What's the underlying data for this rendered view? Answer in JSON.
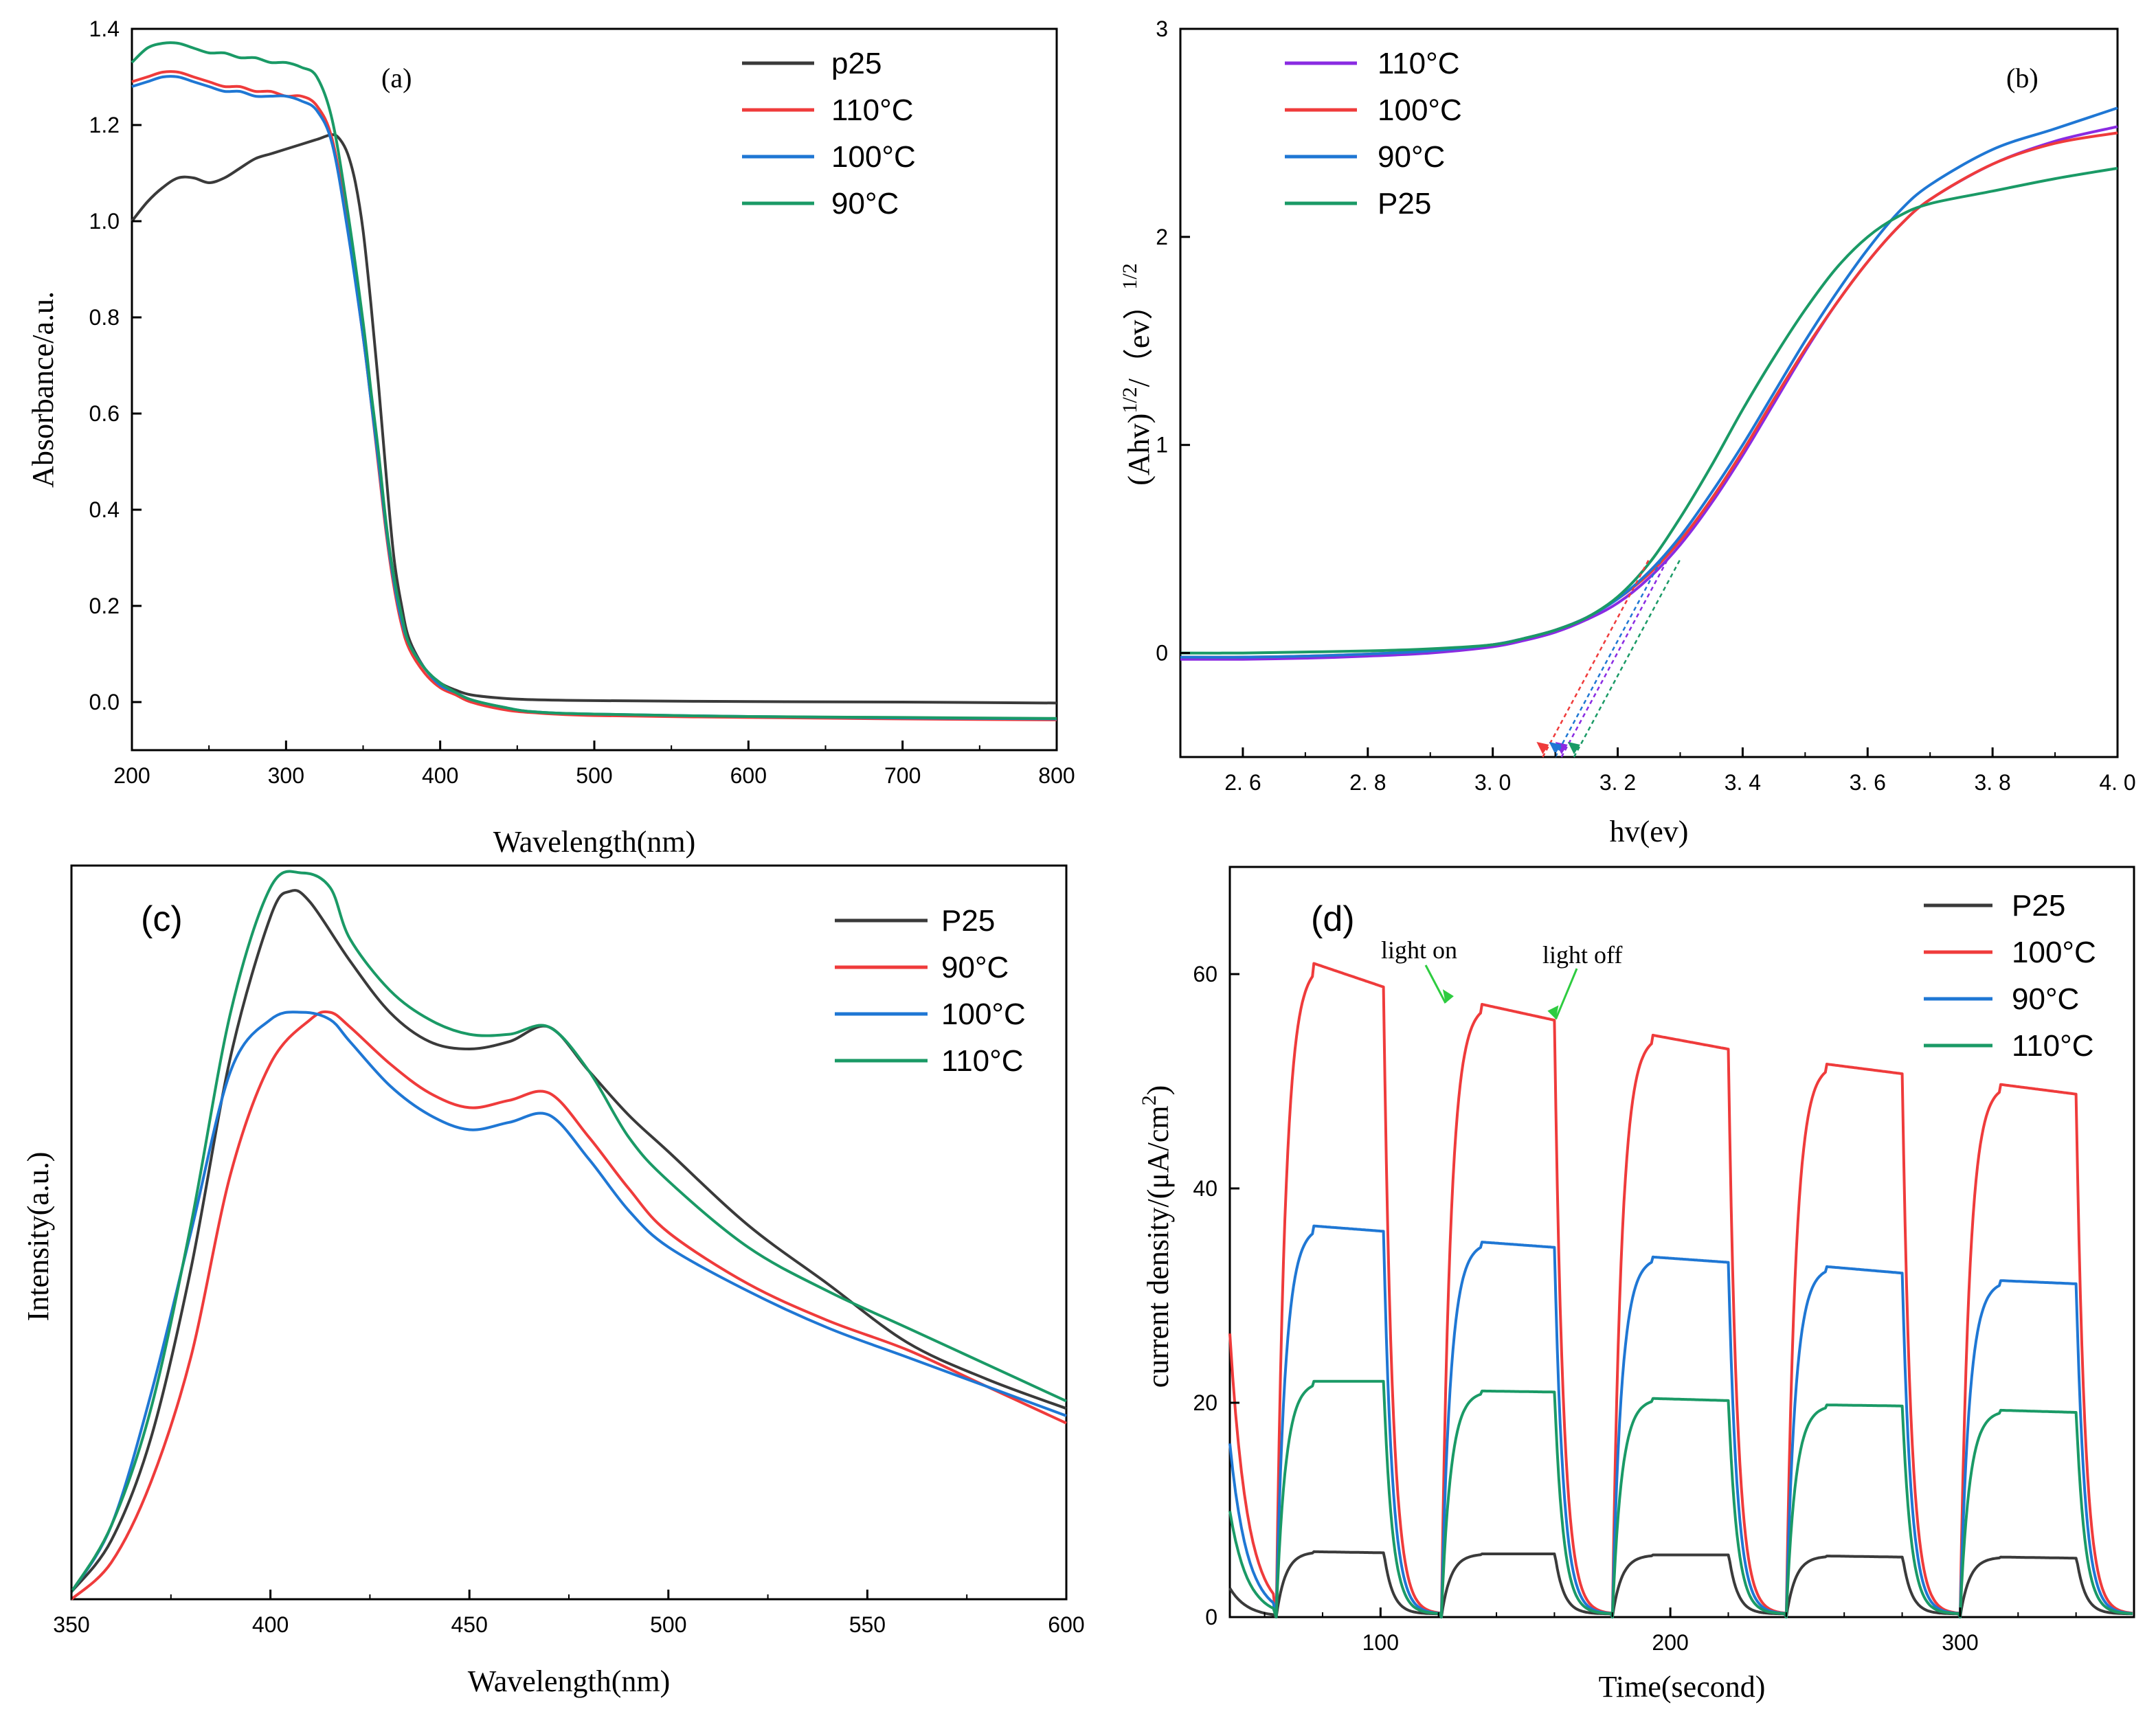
{
  "chart_data": [
    {
      "id": "a",
      "type": "line",
      "panel_label": "(a)",
      "xlabel": "Wavelength(nm)",
      "ylabel": "Absorbance/a.u.",
      "xlim": [
        200,
        800
      ],
      "ylim": [
        -0.1,
        1.4
      ],
      "xticks": [
        200,
        300,
        400,
        500,
        600,
        700,
        800
      ],
      "yticks": [
        0.0,
        0.2,
        0.4,
        0.6,
        0.8,
        1.0,
        1.2,
        1.4
      ],
      "ytick_labels": [
        "0.0",
        "0.2",
        "0.4",
        "0.6",
        "0.8",
        "1.0",
        "1.2",
        "1.4"
      ],
      "legend": "top-right",
      "series": [
        {
          "name": "p25",
          "color": "#3a3a3a",
          "x": [
            200,
            210,
            220,
            230,
            240,
            250,
            260,
            270,
            280,
            290,
            300,
            310,
            320,
            330,
            335,
            340,
            345,
            350,
            355,
            360,
            365,
            370,
            375,
            380,
            390,
            400,
            410,
            420,
            440,
            460,
            500,
            600,
            700,
            800
          ],
          "y": [
            1.0,
            1.04,
            1.07,
            1.09,
            1.09,
            1.08,
            1.09,
            1.11,
            1.13,
            1.14,
            1.15,
            1.16,
            1.17,
            1.18,
            1.17,
            1.14,
            1.08,
            0.98,
            0.83,
            0.66,
            0.47,
            0.3,
            0.2,
            0.13,
            0.07,
            0.04,
            0.025,
            0.015,
            0.008,
            0.005,
            0.003,
            0.001,
            0.0,
            -0.002
          ]
        },
        {
          "name": "110°C",
          "color": "#ef3b3b",
          "x": [
            200,
            210,
            220,
            230,
            240,
            250,
            260,
            270,
            280,
            290,
            300,
            310,
            320,
            330,
            340,
            350,
            355,
            360,
            365,
            370,
            375,
            380,
            390,
            400,
            410,
            420,
            440,
            460,
            500,
            600,
            700,
            800
          ],
          "y": [
            1.29,
            1.3,
            1.31,
            1.31,
            1.3,
            1.29,
            1.28,
            1.28,
            1.27,
            1.27,
            1.26,
            1.26,
            1.24,
            1.17,
            0.99,
            0.76,
            0.63,
            0.49,
            0.35,
            0.24,
            0.16,
            0.11,
            0.06,
            0.03,
            0.015,
            0.0,
            -0.015,
            -0.022,
            -0.028,
            -0.032,
            -0.035,
            -0.037
          ]
        },
        {
          "name": "100°C",
          "color": "#1f77d4",
          "x": [
            200,
            210,
            220,
            230,
            240,
            250,
            260,
            270,
            280,
            290,
            300,
            310,
            320,
            330,
            340,
            350,
            355,
            360,
            365,
            370,
            375,
            380,
            390,
            400,
            410,
            420,
            440,
            460,
            500,
            600,
            700,
            800
          ],
          "y": [
            1.28,
            1.29,
            1.3,
            1.3,
            1.29,
            1.28,
            1.27,
            1.27,
            1.26,
            1.26,
            1.26,
            1.25,
            1.23,
            1.16,
            0.98,
            0.76,
            0.63,
            0.5,
            0.36,
            0.25,
            0.17,
            0.12,
            0.07,
            0.035,
            0.02,
            0.005,
            -0.01,
            -0.02,
            -0.025,
            -0.03,
            -0.033,
            -0.035
          ]
        },
        {
          "name": "90°C",
          "color": "#1a9a66",
          "x": [
            200,
            210,
            220,
            230,
            240,
            250,
            260,
            270,
            280,
            290,
            300,
            310,
            320,
            330,
            340,
            350,
            355,
            360,
            365,
            370,
            375,
            380,
            390,
            400,
            410,
            420,
            440,
            460,
            500,
            600,
            700,
            800
          ],
          "y": [
            1.33,
            1.36,
            1.37,
            1.37,
            1.36,
            1.35,
            1.35,
            1.34,
            1.34,
            1.33,
            1.33,
            1.32,
            1.3,
            1.21,
            1.02,
            0.79,
            0.65,
            0.52,
            0.37,
            0.26,
            0.18,
            0.12,
            0.07,
            0.04,
            0.02,
            0.005,
            -0.01,
            -0.02,
            -0.025,
            -0.03,
            -0.032,
            -0.034
          ]
        }
      ]
    },
    {
      "id": "b",
      "type": "line",
      "panel_label": "(b)",
      "xlabel": "hv(ev)",
      "ylabel": "(Ahv)^1/2/ (ev)^1/2",
      "ylabel_parts": {
        "base": "(Ahv)",
        "sup1": "1/2",
        "mid": "/（ev）",
        "sup2": "1/2"
      },
      "xlim": [
        2.5,
        4.0
      ],
      "ylim": [
        -0.5,
        3.0
      ],
      "xticks": [
        2.6,
        2.8,
        3.0,
        3.2,
        3.4,
        3.6,
        3.8,
        4.0
      ],
      "xtick_labels": [
        "2. 6",
        "2. 8",
        "3. 0",
        "3. 2",
        "3. 4",
        "3. 6",
        "3. 8",
        "4. 0"
      ],
      "yticks": [
        0,
        1,
        2,
        3
      ],
      "ytick_labels": [
        "0",
        "1",
        "2",
        "3"
      ],
      "legend": "top-left",
      "series": [
        {
          "name": "110°C",
          "color": "#8a2be2",
          "tangent_intercept": 3.11,
          "x": [
            2.5,
            2.6,
            2.7,
            2.8,
            2.9,
            3.0,
            3.05,
            3.1,
            3.15,
            3.2,
            3.25,
            3.3,
            3.35,
            3.4,
            3.45,
            3.5,
            3.55,
            3.6,
            3.65,
            3.7,
            3.8,
            3.9,
            4.0
          ],
          "y": [
            -0.03,
            -0.03,
            -0.025,
            -0.015,
            0.0,
            0.03,
            0.06,
            0.1,
            0.16,
            0.24,
            0.36,
            0.52,
            0.72,
            0.95,
            1.2,
            1.45,
            1.68,
            1.88,
            2.05,
            2.18,
            2.35,
            2.46,
            2.53
          ]
        },
        {
          "name": "100°C",
          "color": "#ef3b3b",
          "tangent_intercept": 3.08,
          "x": [
            2.5,
            2.6,
            2.7,
            2.8,
            2.9,
            3.0,
            3.05,
            3.1,
            3.15,
            3.2,
            3.25,
            3.3,
            3.35,
            3.4,
            3.45,
            3.5,
            3.55,
            3.6,
            3.65,
            3.7,
            3.8,
            3.9,
            4.0
          ],
          "y": [
            -0.02,
            -0.02,
            -0.015,
            -0.005,
            0.01,
            0.04,
            0.07,
            0.11,
            0.17,
            0.26,
            0.38,
            0.54,
            0.74,
            0.97,
            1.22,
            1.46,
            1.68,
            1.88,
            2.05,
            2.18,
            2.35,
            2.45,
            2.5
          ]
        },
        {
          "name": "90°C",
          "color": "#1f77d4",
          "tangent_intercept": 3.1,
          "x": [
            2.5,
            2.6,
            2.7,
            2.8,
            2.9,
            3.0,
            3.05,
            3.1,
            3.15,
            3.2,
            3.25,
            3.3,
            3.35,
            3.4,
            3.45,
            3.5,
            3.55,
            3.6,
            3.65,
            3.7,
            3.8,
            3.9,
            4.0
          ],
          "y": [
            -0.02,
            -0.02,
            -0.015,
            -0.005,
            0.01,
            0.04,
            0.07,
            0.11,
            0.17,
            0.26,
            0.39,
            0.56,
            0.77,
            1.0,
            1.25,
            1.5,
            1.73,
            1.94,
            2.12,
            2.25,
            2.42,
            2.52,
            2.62
          ]
        },
        {
          "name": "P25",
          "color": "#1a9a66",
          "tangent_intercept": 3.13,
          "x": [
            2.5,
            2.6,
            2.7,
            2.8,
            2.9,
            3.0,
            3.05,
            3.1,
            3.15,
            3.2,
            3.25,
            3.3,
            3.35,
            3.4,
            3.45,
            3.5,
            3.55,
            3.6,
            3.65,
            3.7,
            3.8,
            3.9,
            4.0
          ],
          "y": [
            0.0,
            0.0,
            0.005,
            0.01,
            0.02,
            0.04,
            0.07,
            0.11,
            0.17,
            0.27,
            0.43,
            0.65,
            0.9,
            1.17,
            1.42,
            1.65,
            1.85,
            2.0,
            2.1,
            2.16,
            2.22,
            2.28,
            2.33
          ]
        }
      ]
    },
    {
      "id": "c",
      "type": "line",
      "panel_label": "(c)",
      "xlabel": "Wavelength(nm)",
      "ylabel": "Intensity(a.u.)",
      "xlim": [
        350,
        600
      ],
      "ylim": [
        0,
        1.0
      ],
      "xticks": [
        350,
        400,
        450,
        500,
        550,
        600
      ],
      "yticks": [],
      "legend": "top-right",
      "series": [
        {
          "name": "P25",
          "color": "#3a3a3a",
          "x": [
            350,
            360,
            370,
            380,
            390,
            400,
            405,
            410,
            420,
            430,
            440,
            450,
            460,
            470,
            480,
            490,
            500,
            520,
            540,
            560,
            580,
            600
          ],
          "y": [
            0.01,
            0.08,
            0.22,
            0.45,
            0.74,
            0.93,
            0.965,
            0.95,
            0.87,
            0.8,
            0.76,
            0.75,
            0.76,
            0.78,
            0.72,
            0.66,
            0.61,
            0.51,
            0.43,
            0.35,
            0.3,
            0.26
          ]
        },
        {
          "name": "90°C",
          "color": "#ef3b3b",
          "x": [
            350,
            360,
            370,
            380,
            390,
            400,
            410,
            415,
            420,
            430,
            440,
            450,
            460,
            470,
            480,
            490,
            500,
            520,
            540,
            560,
            580,
            600
          ],
          "y": [
            0.0,
            0.05,
            0.16,
            0.33,
            0.58,
            0.73,
            0.79,
            0.8,
            0.78,
            0.73,
            0.69,
            0.67,
            0.68,
            0.69,
            0.63,
            0.56,
            0.5,
            0.43,
            0.38,
            0.34,
            0.29,
            0.24
          ]
        },
        {
          "name": "100°C",
          "color": "#1f77d4",
          "x": [
            350,
            360,
            370,
            380,
            390,
            400,
            408,
            415,
            420,
            430,
            440,
            450,
            460,
            470,
            480,
            490,
            500,
            520,
            540,
            560,
            580,
            600
          ],
          "y": [
            0.01,
            0.1,
            0.28,
            0.5,
            0.72,
            0.79,
            0.8,
            0.79,
            0.76,
            0.7,
            0.66,
            0.64,
            0.65,
            0.66,
            0.6,
            0.53,
            0.48,
            0.42,
            0.37,
            0.33,
            0.29,
            0.25
          ]
        },
        {
          "name": "110°C",
          "color": "#1a9a66",
          "x": [
            350,
            360,
            370,
            380,
            390,
            400,
            408,
            415,
            420,
            430,
            440,
            450,
            460,
            470,
            480,
            490,
            500,
            520,
            540,
            560,
            580,
            600
          ],
          "y": [
            0.01,
            0.1,
            0.26,
            0.51,
            0.8,
            0.97,
            0.99,
            0.97,
            0.9,
            0.83,
            0.79,
            0.77,
            0.77,
            0.78,
            0.72,
            0.63,
            0.57,
            0.48,
            0.42,
            0.37,
            0.32,
            0.27
          ]
        }
      ]
    },
    {
      "id": "d",
      "type": "line",
      "panel_label": "(d)",
      "xlabel": "Time(second)",
      "ylabel": "current density/(μA/cm^2)",
      "ylabel_parts": {
        "base": "current density/(μA/cm",
        "sup": "2",
        "end": ")"
      },
      "xlim": [
        48,
        360
      ],
      "ylim": [
        0,
        70
      ],
      "xticks": [
        100,
        200,
        300
      ],
      "yticks": [
        0,
        20,
        40,
        60
      ],
      "legend": "top-right",
      "light_cycles": [
        [
          64,
          101
        ],
        [
          121,
          160
        ],
        [
          180,
          220
        ],
        [
          240,
          280
        ],
        [
          300,
          340
        ]
      ],
      "annotations": [
        {
          "text": "light on",
          "x": 121,
          "y": 57
        },
        {
          "text": "light off",
          "x": 160,
          "y": 56
        }
      ],
      "series": [
        {
          "name": "P25",
          "color": "#3a3a3a",
          "peaks": [
            6.1,
            5.9,
            5.8,
            5.7,
            5.6
          ],
          "ends": [
            6.0,
            5.9,
            5.8,
            5.6,
            5.5
          ]
        },
        {
          "name": "100°C",
          "color": "#ef3b3b",
          "peaks": [
            61.0,
            57.2,
            54.3,
            51.6,
            49.7
          ],
          "ends": [
            58.8,
            55.7,
            53.0,
            50.7,
            48.8
          ]
        },
        {
          "name": "90°C",
          "color": "#1f77d4",
          "peaks": [
            36.5,
            35.0,
            33.6,
            32.7,
            31.4
          ],
          "ends": [
            36.0,
            34.5,
            33.1,
            32.1,
            31.1
          ]
        },
        {
          "name": "110°C",
          "color": "#1a9a66",
          "peaks": [
            22.0,
            21.1,
            20.4,
            19.8,
            19.3
          ],
          "ends": [
            22.0,
            21.0,
            20.2,
            19.7,
            19.1
          ]
        }
      ]
    }
  ]
}
